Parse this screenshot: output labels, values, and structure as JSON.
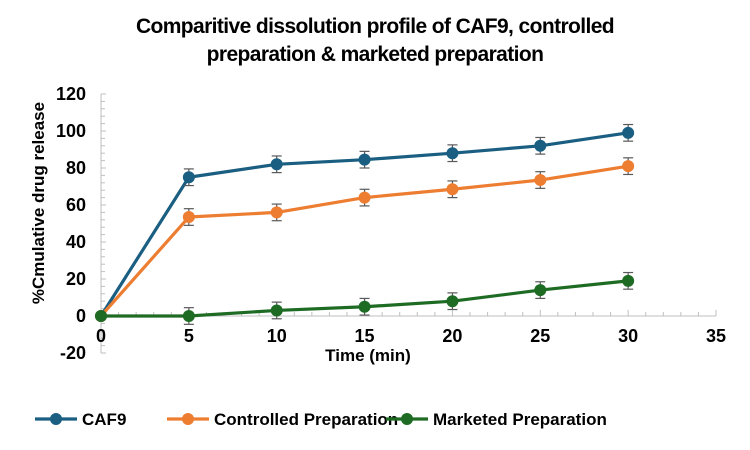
{
  "chart_data": {
    "type": "line",
    "title_lines": [
      "Comparitive dissolution profile of CAF9, controlled",
      "preparation & marketed preparation"
    ],
    "xlabel": "Time (min)",
    "ylabel": "%Cmulative drug release",
    "xlim": [
      0,
      35
    ],
    "ylim": [
      -20,
      120
    ],
    "xticks": [
      0,
      5,
      10,
      15,
      20,
      25,
      30,
      35
    ],
    "yticks": [
      -20,
      0,
      20,
      40,
      60,
      80,
      100,
      120
    ],
    "grid": false,
    "legend_position": "bottom",
    "x": [
      0,
      5,
      10,
      15,
      20,
      25,
      30
    ],
    "series": [
      {
        "name": "CAF9",
        "color": "#1a5e82",
        "values": [
          0,
          75,
          82,
          84.5,
          88,
          92,
          99
        ],
        "error": [
          0,
          4.5,
          4.5,
          4.5,
          4.5,
          4.5,
          4.5
        ]
      },
      {
        "name": "Controlled Preparation",
        "color": "#ed7d31",
        "values": [
          0,
          53.5,
          56,
          64,
          68.5,
          73.5,
          81
        ],
        "error": [
          0,
          4.5,
          4.5,
          4.5,
          4.5,
          4.5,
          4.5
        ]
      },
      {
        "name": "Marketed Preparation",
        "color": "#1e6b24",
        "values": [
          0,
          0,
          3,
          5,
          8,
          14,
          19
        ],
        "error": [
          0,
          4.5,
          4.5,
          4.5,
          4.5,
          4.5,
          4.5
        ]
      }
    ]
  }
}
